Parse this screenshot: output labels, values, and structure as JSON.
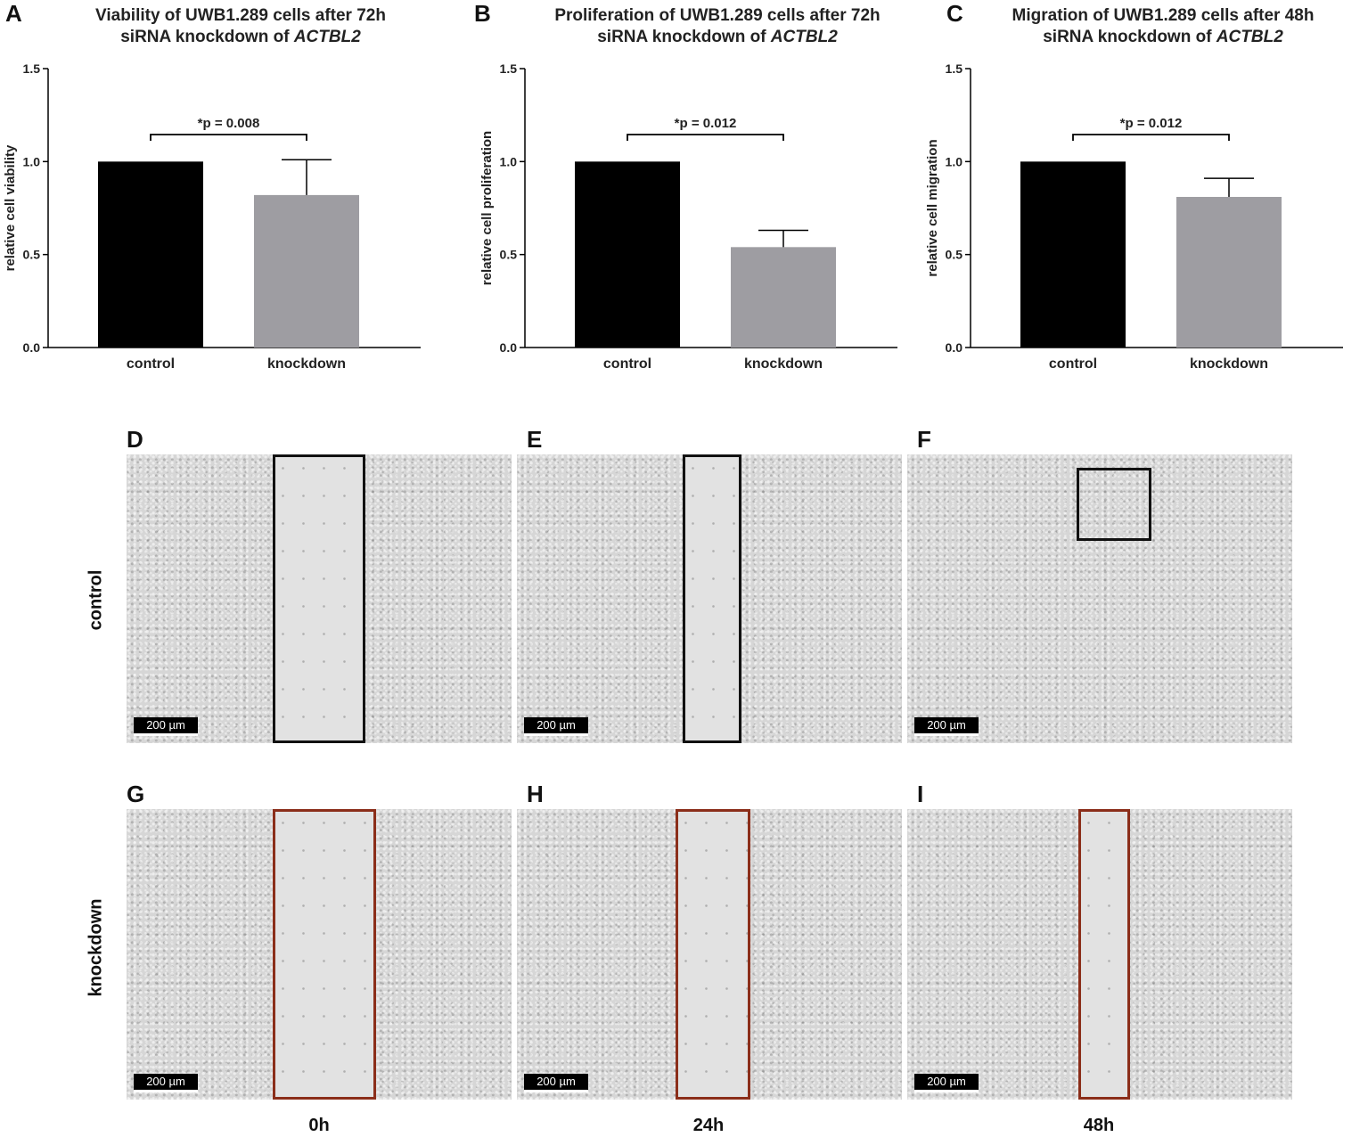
{
  "panel_letters": [
    "A",
    "B",
    "C",
    "D",
    "E",
    "F",
    "G",
    "H",
    "I"
  ],
  "chart_data": [
    {
      "type": "bar",
      "panel": "A",
      "title_line1": "Viability of UWB1.289 cells after 72h",
      "title_line2_prefix": "siRNA knockdown of ",
      "title_gene": "ACTBL2",
      "categories": [
        "control",
        "knockdown"
      ],
      "values": [
        1.0,
        0.82
      ],
      "errors": [
        0,
        0.19
      ],
      "colors": [
        "#000000",
        "#9e9da2"
      ],
      "ylabel": "relative cell viability",
      "xlabel": "",
      "ylim": [
        0,
        1.5
      ],
      "yticks": [
        "0.0",
        "0.5",
        "1.0",
        "1.5"
      ],
      "annotation": "*p = 0.008"
    },
    {
      "type": "bar",
      "panel": "B",
      "title_line1": "Proliferation of UWB1.289 cells after 72h",
      "title_line2_prefix": "siRNA knockdown of ",
      "title_gene": "ACTBL2",
      "categories": [
        "control",
        "knockdown"
      ],
      "values": [
        1.0,
        0.54
      ],
      "errors": [
        0,
        0.09
      ],
      "colors": [
        "#000000",
        "#9e9da2"
      ],
      "ylabel": "relative cell proliferation",
      "xlabel": "",
      "ylim": [
        0,
        1.5
      ],
      "yticks": [
        "0.0",
        "0.5",
        "1.0",
        "1.5"
      ],
      "annotation": "*p = 0.012"
    },
    {
      "type": "bar",
      "panel": "C",
      "title_line1": "Migration of UWB1.289 cells after 48h",
      "title_line2_prefix": "siRNA knockdown of ",
      "title_gene": "ACTBL2",
      "categories": [
        "control",
        "knockdown"
      ],
      "values": [
        1.0,
        0.81
      ],
      "errors": [
        0,
        0.1
      ],
      "colors": [
        "#000000",
        "#9e9da2"
      ],
      "ylabel": "relative cell migration",
      "xlabel": "",
      "ylim": [
        0,
        1.5
      ],
      "yticks": [
        "0.0",
        "0.5",
        "1.0",
        "1.5"
      ],
      "annotation": "*p = 0.012"
    }
  ],
  "micrographs": {
    "row_labels": [
      "control",
      "knockdown"
    ],
    "time_labels": [
      "0h",
      "24h",
      "48h"
    ],
    "scale_bar": "200 µm",
    "roi_colors": {
      "control": "#111111",
      "knockdown": "#8b2e1a"
    }
  }
}
